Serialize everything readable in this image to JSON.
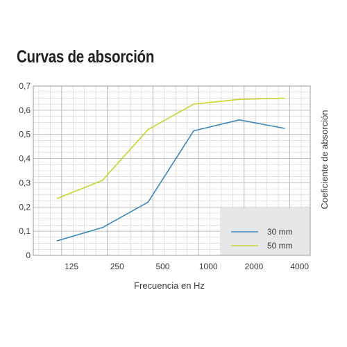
{
  "chart_data": {
    "type": "line",
    "title": "Curvas de absorción",
    "xlabel": "Frecuencia en Hz",
    "ylabel": "Coeficiente de absorción",
    "x_ticks": [
      "125",
      "250",
      "500",
      "1000",
      "2000",
      "4000"
    ],
    "y_ticks": [
      "0",
      "0,1",
      "0,2",
      "0,3",
      "0,4",
      "0,5",
      "0,6",
      "0,7"
    ],
    "x_scale": "log",
    "xlim": [
      70,
      4700
    ],
    "ylim": [
      0,
      0.7
    ],
    "grid": true,
    "legend_position": "bottom-right",
    "x": [
      100,
      200,
      400,
      800,
      1600,
      3200
    ],
    "series": [
      {
        "name": "30 mm",
        "color": "#3a86b8",
        "values": [
          0.06,
          0.115,
          0.22,
          0.515,
          0.56,
          0.525
        ]
      },
      {
        "name": "50 mm",
        "color": "#c9d42c",
        "values": [
          0.235,
          0.31,
          0.52,
          0.625,
          0.645,
          0.65
        ]
      }
    ]
  }
}
